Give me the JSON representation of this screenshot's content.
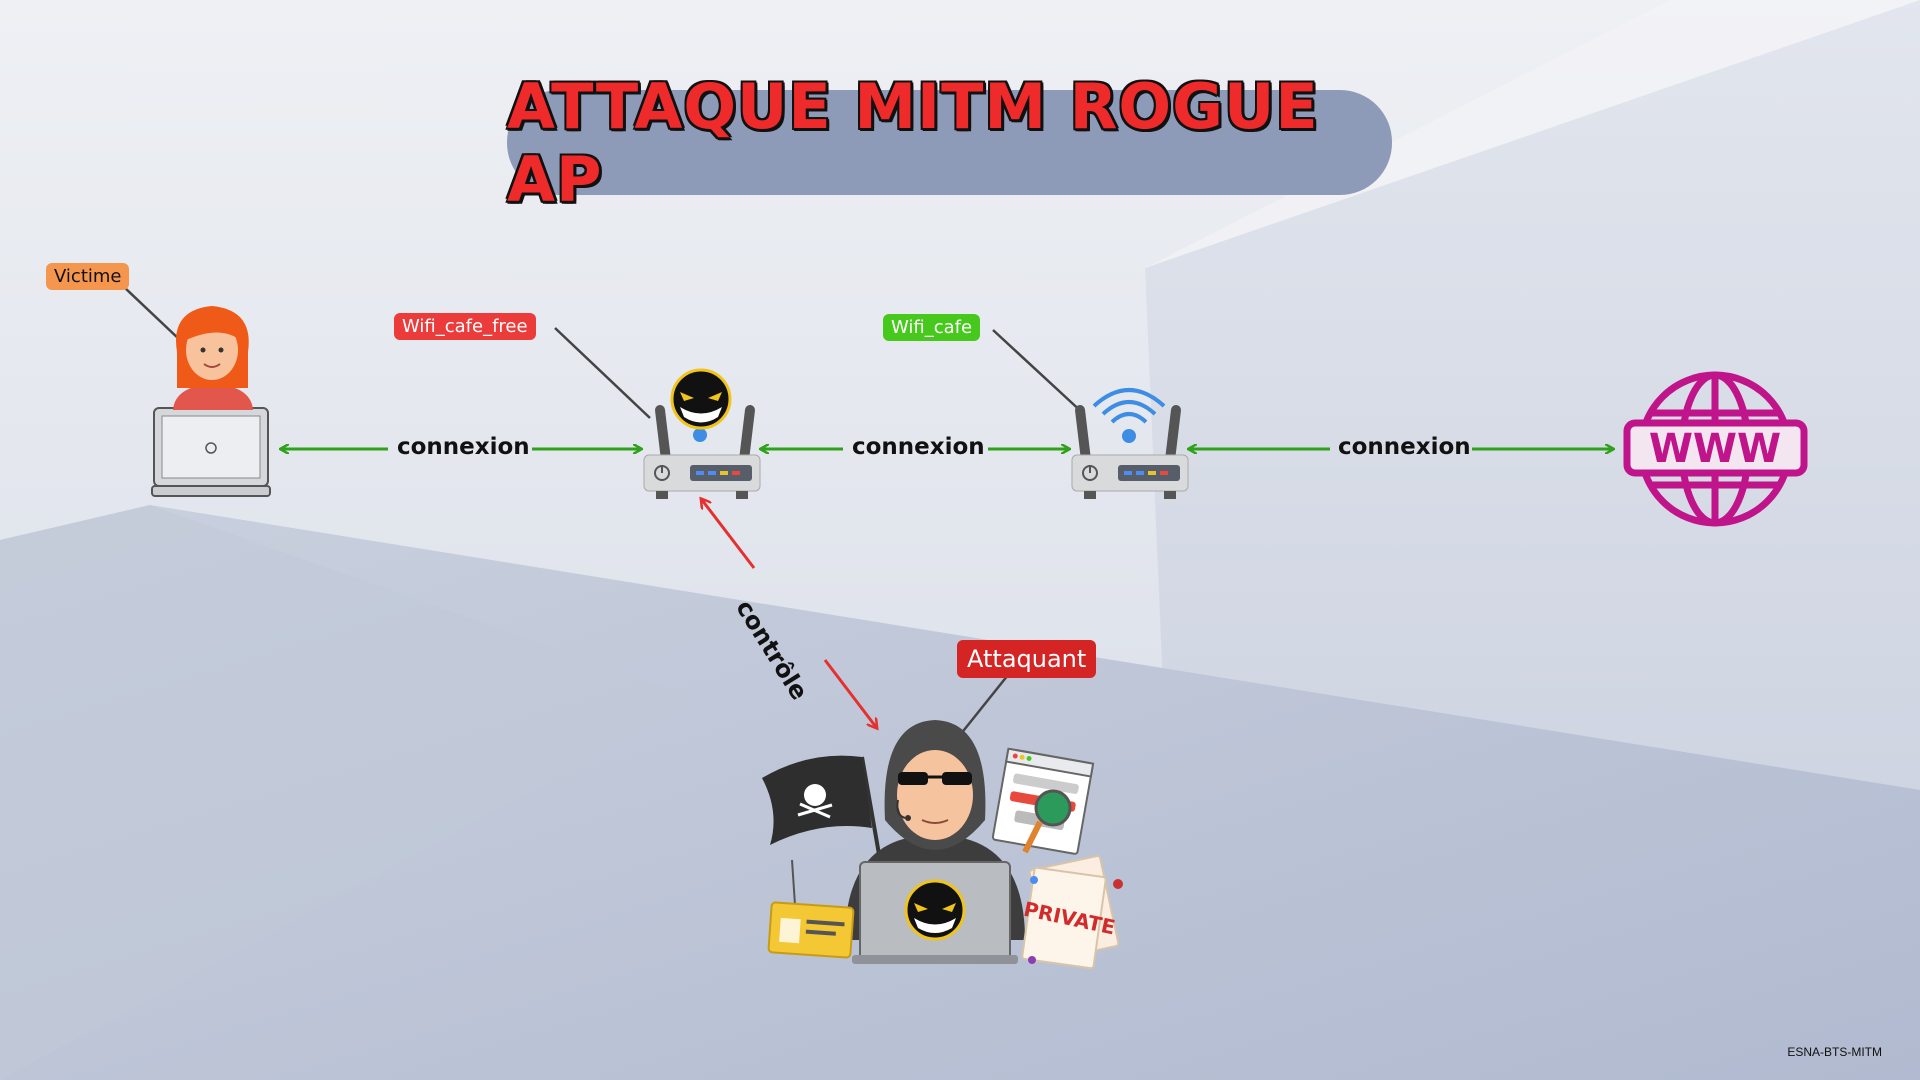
{
  "title": "ATTAQUE MITM ROGUE AP",
  "nodes": {
    "victim_label": "Victime",
    "rogue_ap_label": "Wifi_cafe_free",
    "legit_ap_label": "Wifi_cafe",
    "attacker_label": "Attaquant",
    "internet_text": "WWW"
  },
  "edges": {
    "victim_to_rogue": "connexion",
    "rogue_to_legit": "connexion",
    "legit_to_internet": "connexion",
    "attacker_to_rogue": "contrôle"
  },
  "attacker_props": {
    "private_doc": "PRIVATE"
  },
  "footer": "ESNA-BTS-MITM",
  "colors": {
    "title": "#ef2a2a",
    "title_pill": "#8e9bb8",
    "connection_arrow": "#2fa11a",
    "control_arrow": "#e53030",
    "victim_tag": "#f5964f",
    "rogue_tag": "#ec3b3b",
    "legit_tag": "#46c91c",
    "attacker_tag": "#d42424",
    "globe": "#c0148a"
  },
  "icons": [
    "laptop-icon",
    "woman-avatar-icon",
    "router-icon",
    "shark-mask-icon",
    "wifi-signal-icon",
    "globe-www-icon",
    "hacker-icon",
    "pirate-flag-icon",
    "id-card-icon",
    "login-window-icon",
    "private-document-icon"
  ]
}
